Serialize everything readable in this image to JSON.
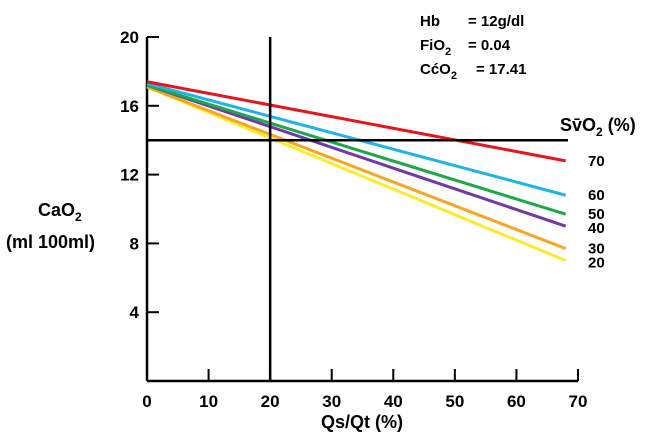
{
  "chart_data": {
    "type": "line",
    "xlabel": "Qs/Qt (%)",
    "ylabel": {
      "main": "CaO",
      "sub": "2",
      "units": "(ml  100ml)"
    },
    "x_ticks": [
      0,
      10,
      20,
      30,
      40,
      50,
      60,
      70
    ],
    "y_ticks": [
      4,
      8,
      12,
      16,
      20
    ],
    "xlim": [
      0,
      70
    ],
    "ylim": [
      0,
      20
    ],
    "grid": false,
    "legend_title": {
      "pre": "S",
      "v": "v̄",
      "sub": "O",
      "subscript": "2",
      "post": " (%)"
    },
    "annotations": {
      "hb": {
        "label": "Hb",
        "value": "= 12g/dl"
      },
      "fio2": {
        "label": "FiO",
        "sub": "2",
        "value": "=  0.04"
      },
      "cco2": {
        "label": "CćO",
        "sub": "2",
        "value": "= 17.41"
      }
    },
    "reference_lines": {
      "vertical_x": 20,
      "horizontal_y": 14
    },
    "series": [
      {
        "name": "70",
        "color": "#e8141b",
        "x": [
          0,
          68
        ],
        "y": [
          17.4,
          12.8
        ]
      },
      {
        "name": "60",
        "color": "#1fb4e6",
        "x": [
          0,
          68
        ],
        "y": [
          17.3,
          10.8
        ]
      },
      {
        "name": "50",
        "color": "#1aa84a",
        "x": [
          0,
          68
        ],
        "y": [
          17.2,
          9.7
        ]
      },
      {
        "name": "40",
        "color": "#6f3aa8",
        "x": [
          0,
          68
        ],
        "y": [
          17.2,
          9.0
        ]
      },
      {
        "name": "30",
        "color": "#f6a623",
        "x": [
          0,
          68
        ],
        "y": [
          17.1,
          7.7
        ]
      },
      {
        "name": "20",
        "color": "#fbec2a",
        "x": [
          0,
          68
        ],
        "y": [
          17.1,
          7.0
        ]
      }
    ]
  }
}
